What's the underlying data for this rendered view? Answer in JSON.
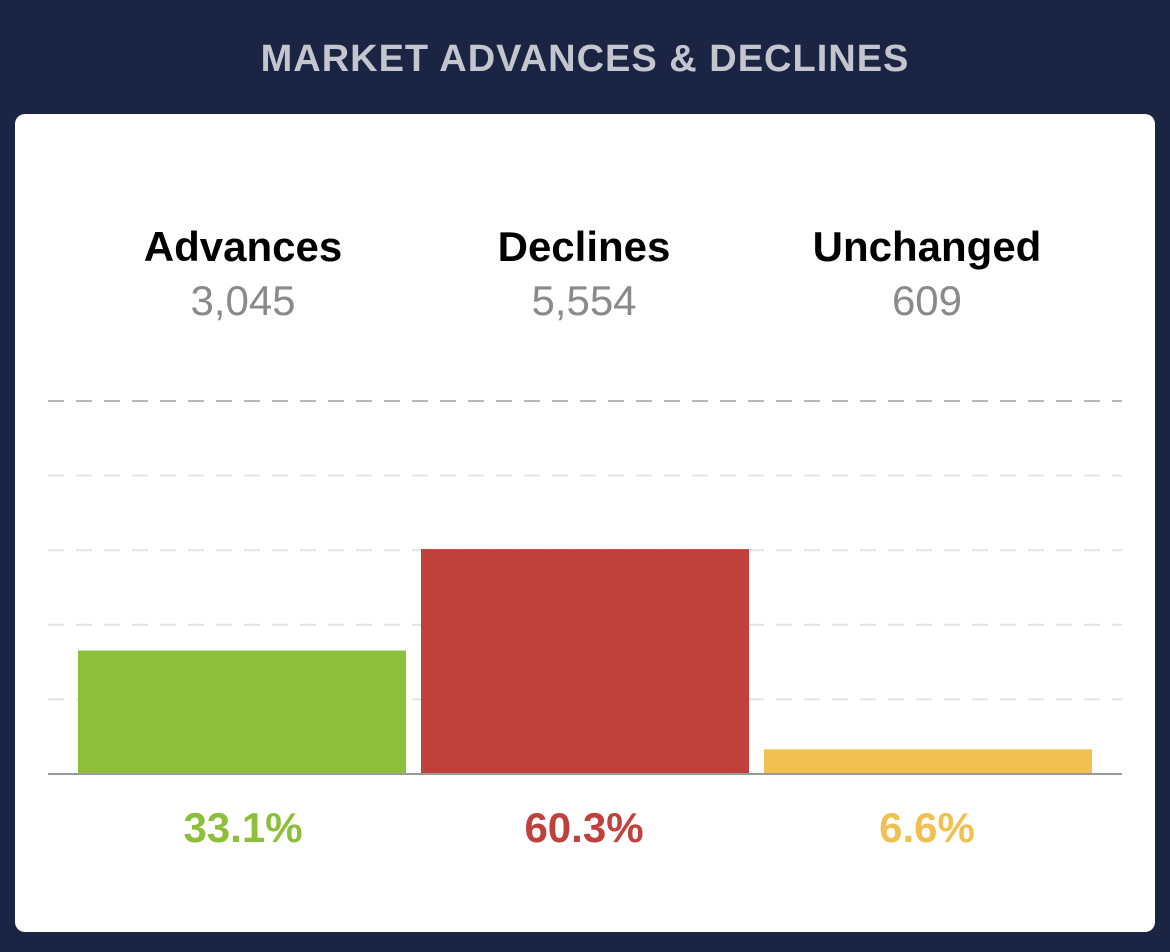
{
  "header": {
    "title": "MARKET ADVANCES & DECLINES"
  },
  "colors": {
    "background": "#1c2444",
    "advances": "#8dbf3b",
    "declines": "#c0413b",
    "unchanged": "#f2c050"
  },
  "stats": [
    {
      "label": "Advances",
      "value": "3,045",
      "percent": "33.1%"
    },
    {
      "label": "Declines",
      "value": "5,554",
      "percent": "60.3%"
    },
    {
      "label": "Unchanged",
      "value": "609",
      "percent": "6.6%"
    }
  ],
  "chart_data": {
    "type": "bar",
    "categories": [
      "Advances",
      "Declines",
      "Unchanged"
    ],
    "values": [
      33.1,
      60.3,
      6.6
    ],
    "counts": [
      3045,
      5554,
      609
    ],
    "ylim": [
      0,
      100
    ],
    "grid": true
  }
}
